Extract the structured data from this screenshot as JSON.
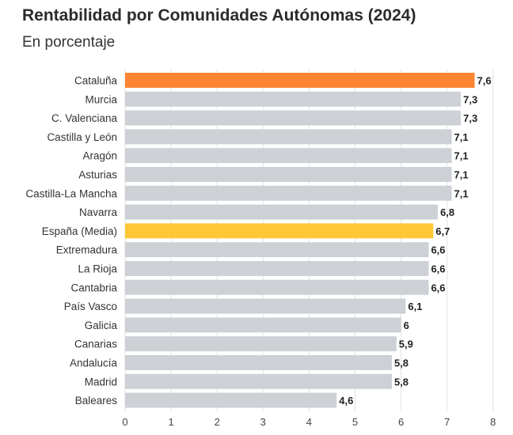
{
  "header": {
    "title": "Rentabilidad por Comunidades Autónomas (2024)",
    "subtitle": "En porcentaje"
  },
  "chart_data": {
    "type": "bar",
    "orientation": "horizontal",
    "title": "Rentabilidad por Comunidades Autónomas (2024)",
    "subtitle": "En porcentaje",
    "xlabel": "",
    "ylabel": "",
    "xlim": [
      0,
      8
    ],
    "ticks": [
      0,
      1,
      2,
      3,
      4,
      5,
      6,
      7,
      8
    ],
    "grid": true,
    "categories": [
      "Cataluña",
      "Murcia",
      "C. Valenciana",
      "Castilla y León",
      "Aragón",
      "Asturias",
      "Castilla-La Mancha",
      "Navarra",
      "España (Media)",
      "Extremadura",
      "La Rioja",
      "Cantabria",
      "País Vasco",
      "Galicia",
      "Canarias",
      "Andalucía",
      "Madrid",
      "Baleares"
    ],
    "values": [
      7.6,
      7.3,
      7.3,
      7.1,
      7.1,
      7.1,
      7.1,
      6.8,
      6.7,
      6.6,
      6.6,
      6.6,
      6.1,
      6,
      5.9,
      5.8,
      5.8,
      4.6
    ],
    "value_labels": [
      "7,6",
      "7,3",
      "7,3",
      "7,1",
      "7,1",
      "7,1",
      "7,1",
      "6,8",
      "6,7",
      "6,6",
      "6,6",
      "6,6",
      "6,1",
      "6",
      "5,9",
      "5,8",
      "5,8",
      "4,6"
    ],
    "colors": {
      "default": "#cdd1d6",
      "highlight_top": "#fe8533",
      "highlight_average": "#fec835"
    },
    "bar_colors": [
      "#fe8533",
      "#cdd1d6",
      "#cdd1d6",
      "#cdd1d6",
      "#cdd1d6",
      "#cdd1d6",
      "#cdd1d6",
      "#cdd1d6",
      "#fec835",
      "#cdd1d6",
      "#cdd1d6",
      "#cdd1d6",
      "#cdd1d6",
      "#cdd1d6",
      "#cdd1d6",
      "#cdd1d6",
      "#cdd1d6",
      "#cdd1d6"
    ]
  }
}
